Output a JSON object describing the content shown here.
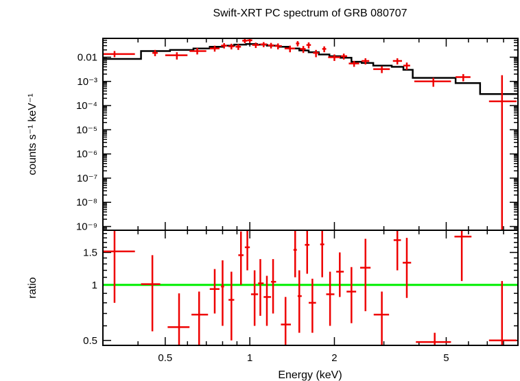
{
  "colors": {
    "data": "#ee0000",
    "model": "#000000",
    "ratio_line": "#00ee00"
  },
  "chart_data": [
    {
      "type": "scatter",
      "title": "Swift-XRT PC spectrum of GRB 080707",
      "ylabel": "counts s⁻¹ keV⁻¹",
      "xlabel": "",
      "xscale": "log",
      "yscale": "log",
      "xlim": [
        0.3,
        9.0
      ],
      "ylim": [
        7e-10,
        0.06
      ],
      "ytick_labels": [
        "0.01",
        "10⁻³",
        "10⁻⁴",
        "10⁻⁵",
        "10⁻⁶",
        "10⁻⁷",
        "10⁻⁸",
        "10⁻⁹"
      ],
      "series": [
        {
          "points": [
            {
              "x": 0.33,
              "xerr": [
                0.3,
                0.39
              ],
              "y": 0.0135,
              "yerr": [
                0.01,
                0.018
              ]
            },
            {
              "x": 0.46,
              "xerr": [
                0.45,
                0.47
              ],
              "y": 0.015,
              "yerr": [
                0.011,
                0.02
              ]
            },
            {
              "x": 0.55,
              "xerr": [
                0.5,
                0.6
              ],
              "y": 0.012,
              "yerr": [
                0.008,
                0.016
              ]
            },
            {
              "x": 0.65,
              "xerr": [
                0.61,
                0.7
              ],
              "y": 0.018,
              "yerr": [
                0.013,
                0.024
              ]
            },
            {
              "x": 0.75,
              "xerr": [
                0.72,
                0.78
              ],
              "y": 0.023,
              "yerr": [
                0.017,
                0.03
              ]
            },
            {
              "x": 0.81,
              "xerr": [
                0.79,
                0.83
              ],
              "y": 0.03,
              "yerr": [
                0.023,
                0.038
              ]
            },
            {
              "x": 0.86,
              "xerr": [
                0.84,
                0.88
              ],
              "y": 0.028,
              "yerr": [
                0.021,
                0.036
              ]
            },
            {
              "x": 0.91,
              "xerr": [
                0.89,
                0.93
              ],
              "y": 0.027,
              "yerr": [
                0.02,
                0.035
              ]
            },
            {
              "x": 0.96,
              "xerr": [
                0.94,
                0.98
              ],
              "y": 0.048,
              "yerr": [
                0.038,
                0.058
              ]
            },
            {
              "x": 1.0,
              "xerr": [
                0.98,
                1.02
              ],
              "y": 0.05,
              "yerr": [
                0.04,
                0.06
              ]
            },
            {
              "x": 1.05,
              "xerr": [
                1.02,
                1.08
              ],
              "y": 0.032,
              "yerr": [
                0.024,
                0.04
              ]
            },
            {
              "x": 1.12,
              "xerr": [
                1.09,
                1.15
              ],
              "y": 0.034,
              "yerr": [
                0.026,
                0.042
              ]
            },
            {
              "x": 1.19,
              "xerr": [
                1.16,
                1.22
              ],
              "y": 0.031,
              "yerr": [
                0.023,
                0.039
              ]
            },
            {
              "x": 1.26,
              "xerr": [
                1.23,
                1.3
              ],
              "y": 0.029,
              "yerr": [
                0.021,
                0.037
              ]
            },
            {
              "x": 1.39,
              "xerr": [
                1.33,
                1.45
              ],
              "y": 0.023,
              "yerr": [
                0.016,
                0.03
              ]
            },
            {
              "x": 1.48,
              "xerr": [
                1.46,
                1.5
              ],
              "y": 0.037,
              "yerr": [
                0.028,
                0.046
              ]
            },
            {
              "x": 1.55,
              "xerr": [
                1.51,
                1.58
              ],
              "y": 0.022,
              "yerr": [
                0.015,
                0.029
              ]
            },
            {
              "x": 1.62,
              "xerr": [
                1.59,
                1.65
              ],
              "y": 0.032,
              "yerr": [
                0.023,
                0.041
              ]
            },
            {
              "x": 1.72,
              "xerr": [
                1.68,
                1.76
              ],
              "y": 0.015,
              "yerr": [
                0.01,
                0.02
              ]
            },
            {
              "x": 1.84,
              "xerr": [
                1.81,
                1.87
              ],
              "y": 0.022,
              "yerr": [
                0.016,
                0.028
              ]
            },
            {
              "x": 2.0,
              "xerr": [
                1.9,
                2.1
              ],
              "y": 0.01,
              "yerr": [
                0.007,
                0.013
              ]
            },
            {
              "x": 2.16,
              "xerr": [
                2.11,
                2.22
              ],
              "y": 0.011,
              "yerr": [
                0.008,
                0.014
              ]
            },
            {
              "x": 2.35,
              "xerr": [
                2.25,
                2.45
              ],
              "y": 0.0055,
              "yerr": [
                0.004,
                0.007
              ]
            },
            {
              "x": 2.58,
              "xerr": [
                2.5,
                2.66
              ],
              "y": 0.007,
              "yerr": [
                0.005,
                0.009
              ]
            },
            {
              "x": 2.95,
              "xerr": [
                2.75,
                3.15
              ],
              "y": 0.0032,
              "yerr": [
                0.0022,
                0.0042
              ]
            },
            {
              "x": 3.35,
              "xerr": [
                3.23,
                3.48
              ],
              "y": 0.007,
              "yerr": [
                0.005,
                0.009
              ]
            },
            {
              "x": 3.62,
              "xerr": [
                3.52,
                3.72
              ],
              "y": 0.0045,
              "yerr": [
                0.003,
                0.006
              ]
            },
            {
              "x": 4.5,
              "xerr": [
                3.85,
                5.2
              ],
              "y": 0.001,
              "yerr": [
                0.0006,
                0.0014
              ]
            },
            {
              "x": 5.75,
              "xerr": [
                5.4,
                6.1
              ],
              "y": 0.0015,
              "yerr": [
                0.001,
                0.002
              ]
            },
            {
              "x": 7.9,
              "xerr": [
                7.1,
                8.9
              ],
              "y": 0.00015,
              "yerr": [
                7e-10,
                0.0018
              ]
            }
          ]
        }
      ],
      "model_steps": [
        {
          "x0": 0.3,
          "x1": 0.41,
          "y": 0.0085
        },
        {
          "x0": 0.41,
          "x1": 0.52,
          "y": 0.018
        },
        {
          "x0": 0.52,
          "x1": 0.63,
          "y": 0.02
        },
        {
          "x0": 0.63,
          "x1": 0.72,
          "y": 0.023
        },
        {
          "x0": 0.72,
          "x1": 0.8,
          "y": 0.027
        },
        {
          "x0": 0.8,
          "x1": 0.88,
          "y": 0.03
        },
        {
          "x0": 0.88,
          "x1": 0.97,
          "y": 0.033
        },
        {
          "x0": 0.97,
          "x1": 1.06,
          "y": 0.035
        },
        {
          "x0": 1.06,
          "x1": 1.15,
          "y": 0.033
        },
        {
          "x0": 1.15,
          "x1": 1.26,
          "y": 0.03
        },
        {
          "x0": 1.26,
          "x1": 1.38,
          "y": 0.027
        },
        {
          "x0": 1.38,
          "x1": 1.5,
          "y": 0.023
        },
        {
          "x0": 1.5,
          "x1": 1.62,
          "y": 0.019
        },
        {
          "x0": 1.62,
          "x1": 1.76,
          "y": 0.016
        },
        {
          "x0": 1.76,
          "x1": 1.92,
          "y": 0.013
        },
        {
          "x0": 1.92,
          "x1": 2.1,
          "y": 0.011
        },
        {
          "x0": 2.1,
          "x1": 2.3,
          "y": 0.0095
        },
        {
          "x0": 2.3,
          "x1": 2.5,
          "y": 0.0065
        },
        {
          "x0": 2.5,
          "x1": 2.75,
          "y": 0.0058
        },
        {
          "x0": 2.75,
          "x1": 3.2,
          "y": 0.0045
        },
        {
          "x0": 3.2,
          "x1": 3.52,
          "y": 0.004
        },
        {
          "x0": 3.52,
          "x1": 3.8,
          "y": 0.003
        },
        {
          "x0": 3.8,
          "x1": 5.4,
          "y": 0.0014
        },
        {
          "x0": 5.4,
          "x1": 6.6,
          "y": 0.00085
        },
        {
          "x0": 6.6,
          "x1": 9.0,
          "y": 0.0003
        }
      ]
    },
    {
      "type": "scatter",
      "title": "",
      "ylabel": "ratio",
      "xlabel": "Energy (keV)",
      "xscale": "log",
      "yscale": "log",
      "xlim": [
        0.3,
        9.0
      ],
      "ylim": [
        0.47,
        1.98
      ],
      "xtick_labels": [
        {
          "value": 0.5,
          "label": "0.5"
        },
        {
          "value": 1,
          "label": "1"
        },
        {
          "value": 2,
          "label": "2"
        },
        {
          "value": 5,
          "label": "5"
        }
      ],
      "ytick_labels": [
        {
          "value": 0.5,
          "label": "0.5"
        },
        {
          "value": 1,
          "label": "1"
        },
        {
          "value": 1.5,
          "label": "1.5"
        }
      ],
      "reference_line": 1.0,
      "series": [
        {
          "points": [
            {
              "x": 0.33,
              "xerr": [
                0.3,
                0.39
              ],
              "y": 1.52,
              "yerr": [
                0.8,
                2.0
              ]
            },
            {
              "x": 0.45,
              "xerr": [
                0.41,
                0.48
              ],
              "y": 1.01,
              "yerr": [
                0.56,
                1.45
              ]
            },
            {
              "x": 0.56,
              "xerr": [
                0.51,
                0.61
              ],
              "y": 0.59,
              "yerr": [
                0.47,
                0.9
              ]
            },
            {
              "x": 0.66,
              "xerr": [
                0.62,
                0.71
              ],
              "y": 0.69,
              "yerr": [
                0.47,
                0.92
              ]
            },
            {
              "x": 0.75,
              "xerr": [
                0.72,
                0.78
              ],
              "y": 0.95,
              "yerr": [
                0.7,
                1.22
              ]
            },
            {
              "x": 0.8,
              "xerr": [
                0.79,
                0.81
              ],
              "y": 0.98,
              "yerr": [
                0.6,
                1.36
              ]
            },
            {
              "x": 0.86,
              "xerr": [
                0.84,
                0.88
              ],
              "y": 0.83,
              "yerr": [
                0.5,
                1.18
              ]
            },
            {
              "x": 0.93,
              "xerr": [
                0.91,
                0.95
              ],
              "y": 1.45,
              "yerr": [
                1.0,
                1.95
              ]
            },
            {
              "x": 0.98,
              "xerr": [
                0.96,
                1.0
              ],
              "y": 1.6,
              "yerr": [
                1.2,
                1.98
              ]
            },
            {
              "x": 1.04,
              "xerr": [
                1.01,
                1.07
              ],
              "y": 0.89,
              "yerr": [
                0.6,
                1.2
              ]
            },
            {
              "x": 1.09,
              "xerr": [
                1.07,
                1.12
              ],
              "y": 1.02,
              "yerr": [
                0.68,
                1.38
              ]
            },
            {
              "x": 1.15,
              "xerr": [
                1.12,
                1.19
              ],
              "y": 0.86,
              "yerr": [
                0.6,
                1.12
              ]
            },
            {
              "x": 1.21,
              "xerr": [
                1.19,
                1.24
              ],
              "y": 1.04,
              "yerr": [
                0.7,
                1.38
              ]
            },
            {
              "x": 1.34,
              "xerr": [
                1.29,
                1.4
              ],
              "y": 0.61,
              "yerr": [
                0.47,
                0.86
              ]
            },
            {
              "x": 1.45,
              "xerr": [
                1.43,
                1.47
              ],
              "y": 1.55,
              "yerr": [
                1.1,
                1.98
              ]
            },
            {
              "x": 1.5,
              "xerr": [
                1.48,
                1.53
              ],
              "y": 0.87,
              "yerr": [
                0.55,
                1.2
              ]
            },
            {
              "x": 1.6,
              "xerr": [
                1.57,
                1.63
              ],
              "y": 1.65,
              "yerr": [
                1.15,
                1.98
              ]
            },
            {
              "x": 1.67,
              "xerr": [
                1.62,
                1.72
              ],
              "y": 0.8,
              "yerr": [
                0.55,
                1.08
              ]
            },
            {
              "x": 1.81,
              "xerr": [
                1.78,
                1.84
              ],
              "y": 1.66,
              "yerr": [
                1.1,
                1.98
              ]
            },
            {
              "x": 1.93,
              "xerr": [
                1.87,
                2.0
              ],
              "y": 0.89,
              "yerr": [
                0.6,
                1.18
              ]
            },
            {
              "x": 2.09,
              "xerr": [
                2.03,
                2.16
              ],
              "y": 1.18,
              "yerr": [
                0.86,
                1.5
              ]
            },
            {
              "x": 2.3,
              "xerr": [
                2.21,
                2.39
              ],
              "y": 0.92,
              "yerr": [
                0.62,
                1.25
              ]
            },
            {
              "x": 2.58,
              "xerr": [
                2.47,
                2.69
              ],
              "y": 1.24,
              "yerr": [
                0.72,
                1.78
              ]
            },
            {
              "x": 2.95,
              "xerr": [
                2.76,
                3.13
              ],
              "y": 0.69,
              "yerr": [
                0.47,
                0.92
              ]
            },
            {
              "x": 3.35,
              "xerr": [
                3.25,
                3.45
              ],
              "y": 1.75,
              "yerr": [
                1.2,
                1.98
              ]
            },
            {
              "x": 3.62,
              "xerr": [
                3.5,
                3.75
              ],
              "y": 1.32,
              "yerr": [
                0.85,
                1.8
              ]
            },
            {
              "x": 4.55,
              "xerr": [
                3.9,
                5.2
              ],
              "y": 0.49,
              "yerr": [
                0.47,
                0.55
              ]
            },
            {
              "x": 5.68,
              "xerr": [
                5.35,
                6.15
              ],
              "y": 1.83,
              "yerr": [
                1.05,
                1.98
              ]
            },
            {
              "x": 7.9,
              "xerr": [
                7.1,
                8.9
              ],
              "y": 0.5,
              "yerr": [
                0.47,
                1.05
              ]
            }
          ]
        }
      ]
    }
  ]
}
